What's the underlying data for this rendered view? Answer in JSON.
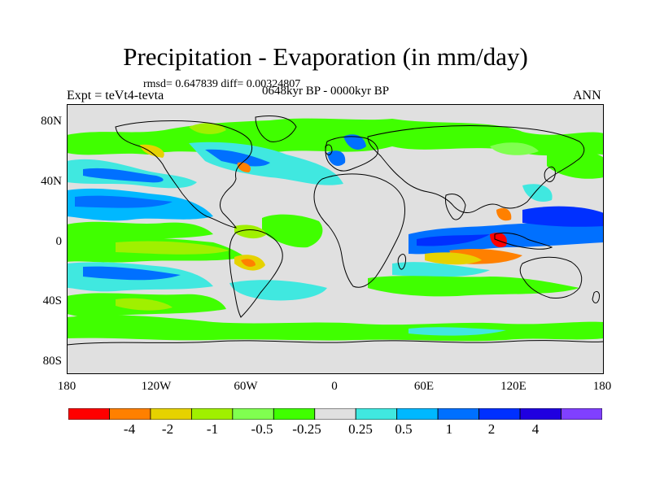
{
  "title": "Precipitation - Evaporation (in mm/day)",
  "stats": "rmsd= 0.647839 diff= 0.00324807",
  "experiment": "Expt = teVt4-tevta",
  "period": "0648kyr BP - 0000kyr BP",
  "season": "ANN",
  "lat_labels": [
    "80N",
    "40N",
    "0",
    "40S",
    "80S"
  ],
  "lon_labels": [
    "180",
    "120W",
    "60W",
    "0",
    "60E",
    "120E",
    "180"
  ],
  "colorbar": {
    "labels": [
      "-4",
      "-2",
      "-1",
      "-0.5",
      "-0.25",
      "0.25",
      "0.5",
      "1",
      "2",
      "4"
    ],
    "colors": [
      "#ff0000",
      "#ff8000",
      "#e6d200",
      "#a0f000",
      "#80ff50",
      "#40ff00",
      "#e0e0e0",
      "#40e8e0",
      "#00b8ff",
      "#0070ff",
      "#0030ff",
      "#2000e0",
      "#8040ff"
    ]
  },
  "colors": {
    "land": "#e0e0e0",
    "green": "#40ff00",
    "lightgreen": "#80ff50",
    "yellowgreen": "#a0f000",
    "yellow": "#e6d200",
    "orange": "#ff8000",
    "red": "#ff0000",
    "cyan": "#40e8e0",
    "skyblue": "#00b8ff",
    "blue": "#0070ff",
    "darkblue": "#0030ff",
    "navy": "#2000e0",
    "purple": "#8040ff"
  }
}
